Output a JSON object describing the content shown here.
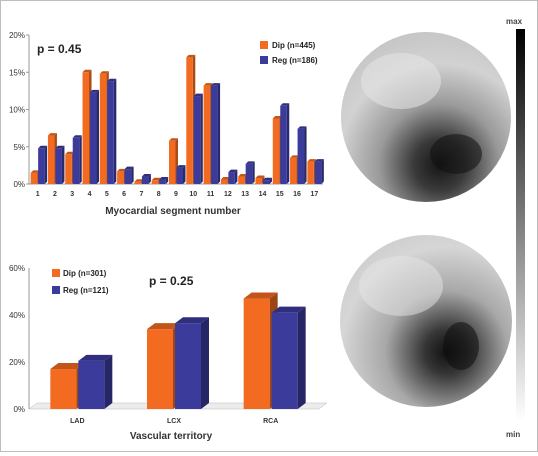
{
  "chart_data": [
    {
      "type": "bar",
      "categories": [
        "1",
        "2",
        "3",
        "4",
        "5",
        "6",
        "7",
        "8",
        "9",
        "10",
        "11",
        "12",
        "13",
        "14",
        "15",
        "16",
        "17"
      ],
      "series": [
        {
          "name": "Dip  (n=445)",
          "color": "#f26b21",
          "values": [
            1.5,
            6.5,
            4,
            15,
            14.8,
            1.7,
            0.3,
            0.5,
            5.8,
            17,
            13.2,
            0.6,
            1,
            0.8,
            8.8,
            3.5,
            3
          ]
        },
        {
          "name": "Reg  (n=186)",
          "color": "#3b3b9c",
          "values": [
            4.8,
            4.8,
            6.2,
            12.3,
            13.8,
            2,
            1,
            0.6,
            2.2,
            11.8,
            13.2,
            1.6,
            2.7,
            0.5,
            10.5,
            7.4,
            3
          ]
        }
      ],
      "annotation": "p = 0.45",
      "xlabel": "Myocardial segment number",
      "ylabel": "",
      "yticks": [
        "0%",
        "5%",
        "10%",
        "15%",
        "20%"
      ],
      "ylim": [
        0,
        20
      ],
      "legend": "top-right",
      "grid": false
    },
    {
      "type": "bar",
      "categories": [
        "LAD",
        "LCX",
        "RCA"
      ],
      "series": [
        {
          "name": "Dip  (n=301)",
          "color": "#f26b21",
          "values": [
            17,
            34,
            47
          ]
        },
        {
          "name": "Reg  (n=121)",
          "color": "#3b3b9c",
          "values": [
            20.5,
            36.5,
            41
          ]
        }
      ],
      "annotation": "p = 0.25",
      "xlabel": "Vascular territory",
      "ylabel": "",
      "yticks": [
        "0%",
        "20%",
        "40%",
        "60%"
      ],
      "ylim": [
        0,
        60
      ],
      "legend": "top-left",
      "grid": false
    }
  ],
  "colorbar": {
    "max_label": "max",
    "min_label": "min"
  },
  "polar_maps": [
    "polar-map-segment",
    "polar-map-vascular"
  ]
}
